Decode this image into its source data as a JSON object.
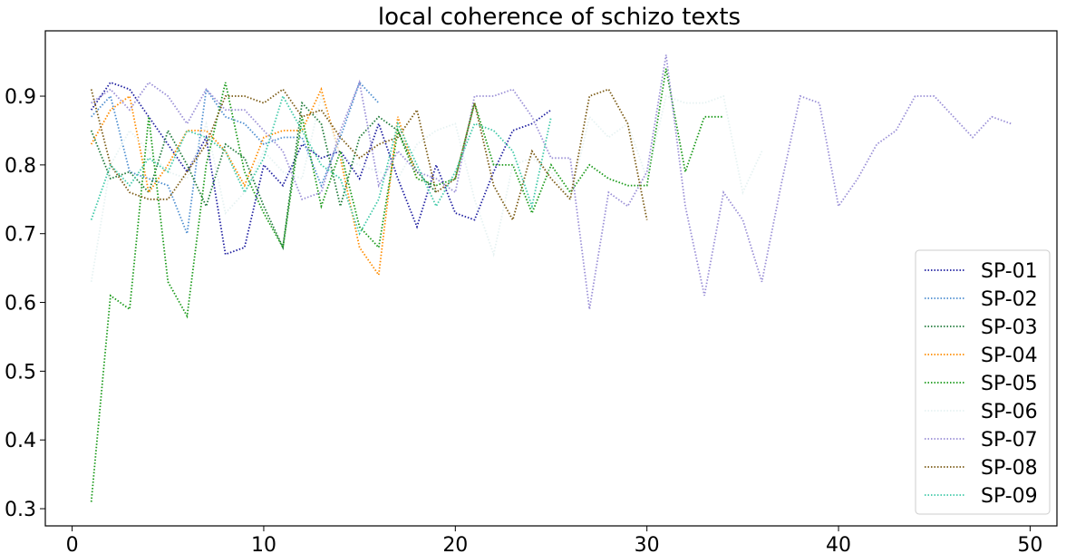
{
  "chart_data": {
    "type": "line",
    "title": "local coherence of schizo texts",
    "xlabel": "",
    "ylabel": "",
    "xlim": [
      -1.4,
      51.4
    ],
    "ylim": [
      0.275,
      0.995
    ],
    "xticks": [
      0,
      10,
      20,
      30,
      40,
      50
    ],
    "yticks": [
      0.3,
      0.4,
      0.5,
      0.6,
      0.7,
      0.8,
      0.9
    ],
    "grid": false,
    "legend_position": "lower-right",
    "line_style": "dotted",
    "series": [
      {
        "name": "SP-01",
        "color": "#1f1fa0",
        "x": [
          1,
          2,
          3,
          4,
          5,
          6,
          7,
          8,
          9,
          10,
          11,
          12,
          13,
          14,
          15,
          16,
          17,
          18,
          19,
          20,
          21,
          22,
          23,
          24,
          25
        ],
        "y": [
          0.88,
          0.92,
          0.91,
          0.87,
          0.83,
          0.79,
          0.84,
          0.67,
          0.68,
          0.8,
          0.77,
          0.83,
          0.81,
          0.82,
          0.78,
          0.86,
          0.78,
          0.71,
          0.8,
          0.73,
          0.72,
          0.79,
          0.85,
          0.86,
          0.88
        ]
      },
      {
        "name": "SP-02",
        "color": "#4f8fd0",
        "x": [
          1,
          2,
          3,
          4,
          5,
          6,
          7,
          8,
          9,
          10,
          11,
          12,
          13,
          14,
          15,
          16
        ],
        "y": [
          0.87,
          0.9,
          0.79,
          0.78,
          0.77,
          0.7,
          0.91,
          0.87,
          0.86,
          0.83,
          0.84,
          0.84,
          0.77,
          0.84,
          0.92,
          0.89
        ]
      },
      {
        "name": "SP-03",
        "color": "#1f7a3a",
        "x": [
          1,
          2,
          3,
          4,
          5,
          6,
          7,
          8,
          9,
          10,
          11,
          12,
          13,
          14,
          15,
          16,
          17,
          18,
          19
        ],
        "y": [
          0.85,
          0.78,
          0.79,
          0.76,
          0.85,
          0.8,
          0.74,
          0.83,
          0.81,
          0.74,
          0.68,
          0.89,
          0.86,
          0.74,
          0.84,
          0.87,
          0.85,
          0.79,
          0.76
        ]
      },
      {
        "name": "SP-04",
        "color": "#ff8c00",
        "x": [
          1,
          2,
          3,
          4,
          5,
          6,
          7,
          8,
          9,
          10,
          11,
          12,
          13,
          14,
          15,
          16,
          17,
          18
        ],
        "y": [
          0.83,
          0.88,
          0.9,
          0.76,
          0.8,
          0.85,
          0.85,
          0.82,
          0.77,
          0.84,
          0.85,
          0.85,
          0.91,
          0.81,
          0.68,
          0.64,
          0.87,
          0.78
        ]
      },
      {
        "name": "SP-05",
        "color": "#1a9a1a",
        "x": [
          1,
          2,
          3,
          4,
          5,
          6,
          7,
          8,
          9,
          10,
          11,
          12,
          13,
          14,
          15,
          16,
          17,
          18,
          19,
          20,
          21,
          22,
          23,
          24,
          25,
          26,
          27,
          28,
          29,
          30,
          31,
          32,
          33,
          34
        ],
        "y": [
          0.31,
          0.61,
          0.59,
          0.87,
          0.63,
          0.58,
          0.8,
          0.92,
          0.79,
          0.73,
          0.68,
          0.87,
          0.74,
          0.82,
          0.71,
          0.68,
          0.85,
          0.78,
          0.77,
          0.78,
          0.89,
          0.8,
          0.8,
          0.73,
          0.8,
          0.76,
          0.8,
          0.78,
          0.77,
          0.77,
          0.94,
          0.79,
          0.87,
          0.87
        ]
      },
      {
        "name": "SP-06",
        "color": "#e6f2f2",
        "x": [
          1,
          2,
          3,
          4,
          5,
          6,
          7,
          8,
          9,
          10,
          11,
          12,
          13,
          14,
          15,
          16,
          17,
          18,
          19,
          20,
          21,
          22,
          23,
          24,
          25,
          26,
          27,
          28,
          29,
          30,
          31,
          32,
          33,
          34,
          35,
          36
        ],
        "y": [
          0.63,
          0.8,
          0.85,
          0.82,
          0.79,
          0.78,
          0.86,
          0.73,
          0.76,
          0.82,
          0.79,
          0.78,
          0.9,
          0.81,
          0.8,
          0.79,
          0.78,
          0.83,
          0.85,
          0.86,
          0.75,
          0.67,
          0.8,
          0.81,
          0.79,
          0.75,
          0.87,
          0.84,
          0.86,
          0.78,
          0.9,
          0.89,
          0.89,
          0.9,
          0.76,
          0.82
        ]
      },
      {
        "name": "SP-07",
        "color": "#9a8fd6",
        "x": [
          1,
          2,
          3,
          4,
          5,
          6,
          7,
          8,
          9,
          10,
          11,
          12,
          13,
          14,
          15,
          16,
          17,
          18,
          19,
          20,
          21,
          22,
          23,
          24,
          25,
          26,
          27,
          28,
          29,
          30,
          31,
          32,
          33,
          34,
          35,
          36,
          37,
          38,
          39,
          40,
          41,
          42,
          43,
          44,
          45,
          46,
          47,
          48,
          49
        ],
        "y": [
          0.89,
          0.91,
          0.88,
          0.92,
          0.9,
          0.86,
          0.91,
          0.88,
          0.88,
          0.85,
          0.82,
          0.75,
          0.76,
          0.85,
          0.92,
          0.77,
          0.82,
          0.79,
          0.78,
          0.76,
          0.9,
          0.9,
          0.91,
          0.87,
          0.81,
          0.81,
          0.59,
          0.76,
          0.74,
          0.79,
          0.96,
          0.74,
          0.61,
          0.76,
          0.72,
          0.63,
          0.77,
          0.9,
          0.89,
          0.74,
          0.78,
          0.83,
          0.85,
          0.9,
          0.9,
          0.87,
          0.84,
          0.87,
          0.86
        ]
      },
      {
        "name": "SP-08",
        "color": "#7a5a14",
        "x": [
          1,
          2,
          3,
          4,
          5,
          6,
          7,
          8,
          9,
          10,
          11,
          12,
          13,
          14,
          15,
          16,
          17,
          18,
          19,
          20,
          21,
          22,
          23,
          24,
          25,
          26,
          27,
          28,
          29,
          30
        ],
        "y": [
          0.91,
          0.8,
          0.76,
          0.75,
          0.75,
          0.79,
          0.83,
          0.9,
          0.9,
          0.89,
          0.91,
          0.87,
          0.88,
          0.84,
          0.81,
          0.83,
          0.84,
          0.88,
          0.76,
          0.78,
          0.89,
          0.77,
          0.72,
          0.82,
          0.78,
          0.75,
          0.9,
          0.91,
          0.86,
          0.72
        ]
      },
      {
        "name": "SP-09",
        "color": "#3fc9a8",
        "x": [
          1,
          2,
          3,
          4,
          5,
          6,
          7,
          8,
          9,
          10,
          11,
          12,
          13,
          14,
          15,
          16,
          17,
          18,
          19,
          20,
          21,
          22,
          23,
          24,
          25
        ],
        "y": [
          0.72,
          0.8,
          0.77,
          0.81,
          0.79,
          0.85,
          0.84,
          0.82,
          0.76,
          0.81,
          0.9,
          0.85,
          0.8,
          0.78,
          0.7,
          0.75,
          0.86,
          0.8,
          0.74,
          0.79,
          0.86,
          0.85,
          0.82,
          0.74,
          0.87
        ]
      }
    ]
  }
}
